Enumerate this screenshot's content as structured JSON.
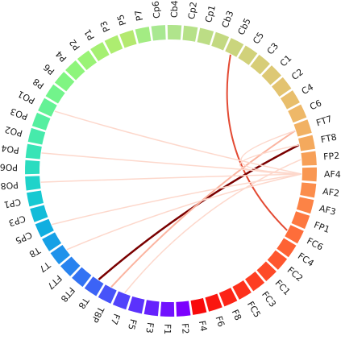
{
  "chart_data": {
    "type": "chord",
    "title": "",
    "nodes": [
      "Cp6",
      "Cb4",
      "Cp2",
      "Cp1",
      "Cb3",
      "Cb5",
      "C5",
      "C3",
      "C1",
      "C2",
      "C4",
      "C6",
      "FT7",
      "FT8",
      "FP2",
      "AF4",
      "AF2",
      "AF3",
      "FP1",
      "FC6",
      "FC4",
      "FC2",
      "FC1",
      "FC3",
      "FC5",
      "F8",
      "F6",
      "F4",
      "F2",
      "F1",
      "F3",
      "F5",
      "F7",
      "T8P",
      "T8",
      "FT8",
      "FT7",
      "T7",
      "T8",
      "CP5",
      "CP3",
      "CP1",
      "PO8",
      "PO6",
      "PO4",
      "PO2",
      "PO3",
      "PO1",
      "P8",
      "P6",
      "P4",
      "P2",
      "P1",
      "P3",
      "P5",
      "P7"
    ],
    "colors": [
      "#a8e891",
      "#b0e48c",
      "#b6e188",
      "#bcdd85",
      "#c3d981",
      "#cad57d",
      "#d1d17a",
      "#d7cd77",
      "#ddc874",
      "#e3c370",
      "#e8be6c",
      "#eeb868",
      "#f1b163",
      "#f4a95d",
      "#f7a058",
      "#f99752",
      "#fb8d4c",
      "#fc8346",
      "#fd7840",
      "#fe6d3a",
      "#fe6234",
      "#fe562e",
      "#fe4a28",
      "#fe3e22",
      "#fd311c",
      "#fc2416",
      "#fa1710",
      "#f80a0a",
      "#7c00fe",
      "#7111fe",
      "#6621fd",
      "#5b32fc",
      "#5143fb",
      "#4653f9",
      "#3c63f6",
      "#3273f3",
      "#2883ef",
      "#1e92eb",
      "#16a0e6",
      "#11aee0",
      "#12bcd9",
      "#17c9d2",
      "#20d3ca",
      "#2bdcc0",
      "#38e4b6",
      "#46eaab",
      "#55efa0",
      "#64f295",
      "#72f48b",
      "#80f582",
      "#8ef57b",
      "#9af376",
      "#a5f072",
      "#aded70",
      "#b4e96f",
      "#a3ec83"
    ],
    "links": [
      {
        "from": "Cb5",
        "to": "FC6",
        "color": "#e34a33",
        "width": 2
      },
      {
        "from": "T8",
        "to": "FT8",
        "color": "#7a0000",
        "width": 2.5
      },
      {
        "from": "T8P",
        "to": "FT7",
        "color": "#fbb4a0",
        "width": 2
      },
      {
        "from": "FP2",
        "to": "F7",
        "color": "#fdd8cc",
        "width": 1.5
      },
      {
        "from": "AF4",
        "to": "FT7",
        "color": "#fdd8cc",
        "width": 1.5
      },
      {
        "from": "AF4",
        "to": "FT8",
        "color": "#fdd8cc",
        "width": 1.5
      },
      {
        "from": "AF4",
        "to": "PO1",
        "color": "#fdd8cc",
        "width": 1.5
      },
      {
        "from": "AF4",
        "to": "PO4",
        "color": "#fdd8cc",
        "width": 1.5
      },
      {
        "from": "AF4",
        "to": "PO8",
        "color": "#fdd8cc",
        "width": 1.5
      },
      {
        "from": "AF4",
        "to": "CP5",
        "color": "#fdd8cc",
        "width": 1.5
      },
      {
        "from": "AF4",
        "to": "T7",
        "color": "#fdd8cc",
        "width": 1.5
      }
    ]
  }
}
